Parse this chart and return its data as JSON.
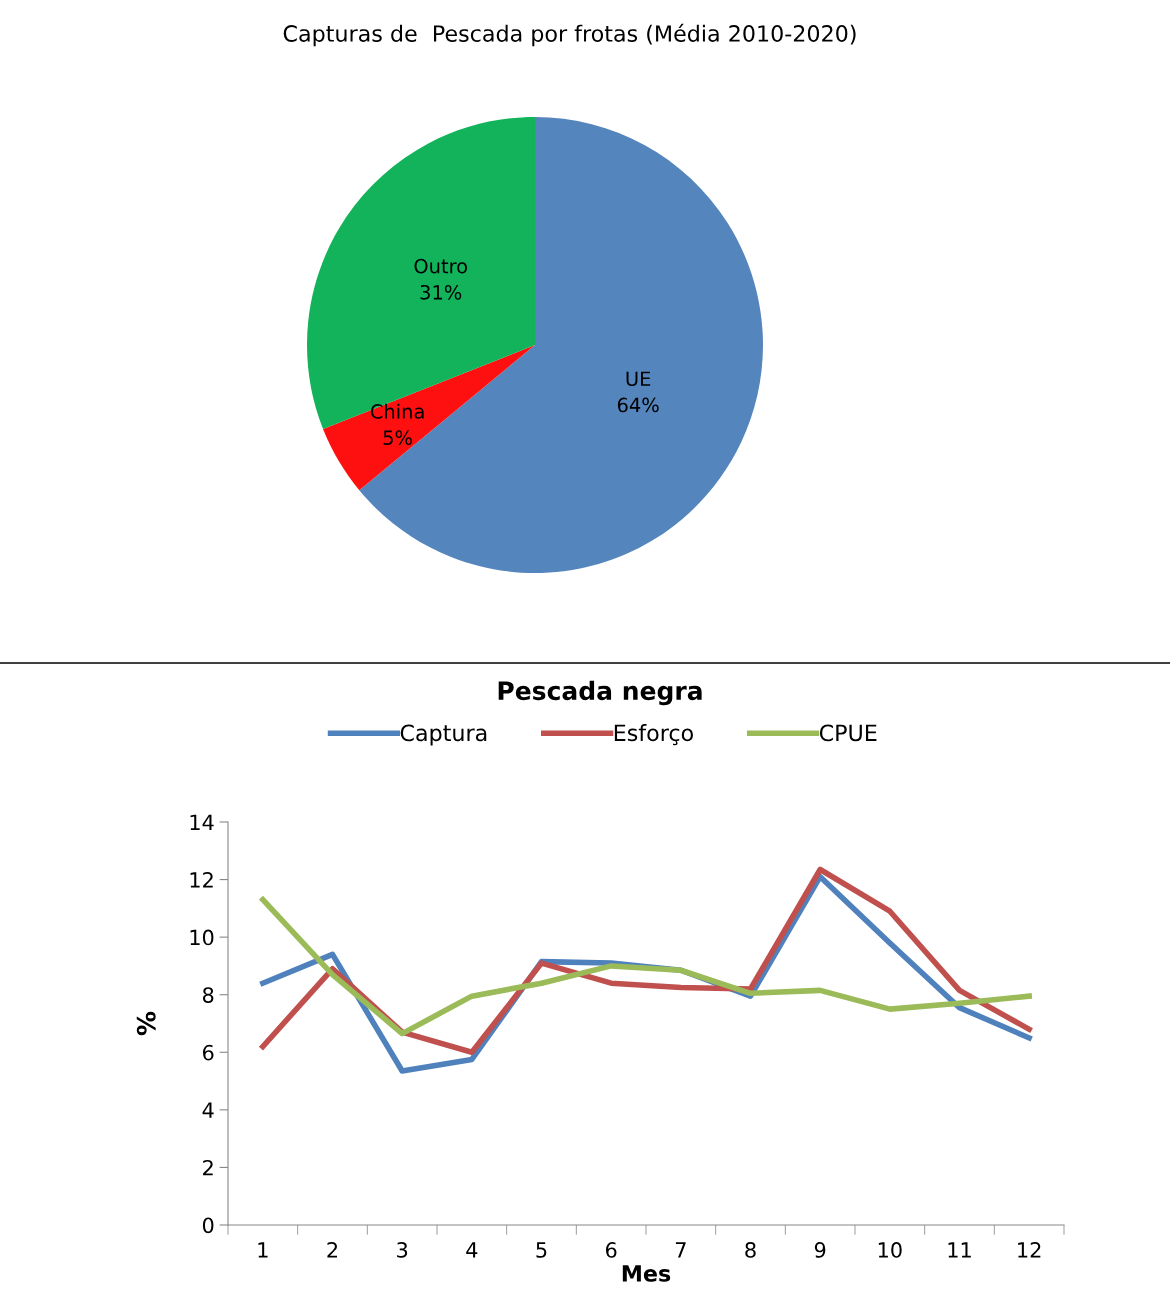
{
  "chart_data": [
    {
      "type": "pie",
      "title": "Capturas de  Pescada por frotas (Média 2010-2020)",
      "categories": [
        "UE",
        "China",
        "Outro"
      ],
      "values": [
        64,
        5,
        31
      ],
      "colors": [
        "#5585bd",
        "#ff1010",
        "#12b35a"
      ],
      "value_labels": [
        "64%",
        "5%",
        "31%"
      ],
      "legend": false
    },
    {
      "type": "line",
      "title": "Pescada negra",
      "xlabel": "Mes",
      "ylabel": "%",
      "categories": [
        "1",
        "2",
        "3",
        "4",
        "5",
        "6",
        "7",
        "8",
        "9",
        "10",
        "11",
        "12"
      ],
      "ylim": [
        0,
        14
      ],
      "yticks": [
        0,
        2,
        4,
        6,
        8,
        10,
        12,
        14
      ],
      "grid": false,
      "legend": "top",
      "marker": "none",
      "line_style": "solid",
      "series": [
        {
          "name": "Captura",
          "color": "#4f81bd",
          "values": [
            8.4,
            9.4,
            5.35,
            5.75,
            9.15,
            9.1,
            8.85,
            7.95,
            12.1,
            9.8,
            7.55,
            6.5
          ]
        },
        {
          "name": "Esforço",
          "color": "#c0504d",
          "values": [
            6.2,
            8.9,
            6.7,
            6.0,
            9.1,
            8.4,
            8.25,
            8.2,
            12.35,
            10.9,
            8.15,
            6.8
          ]
        },
        {
          "name": "CPUE",
          "color": "#9bbb59",
          "values": [
            11.3,
            8.7,
            6.65,
            7.95,
            8.4,
            9.0,
            8.85,
            8.05,
            8.15,
            7.5,
            7.7,
            7.95
          ]
        }
      ]
    }
  ]
}
